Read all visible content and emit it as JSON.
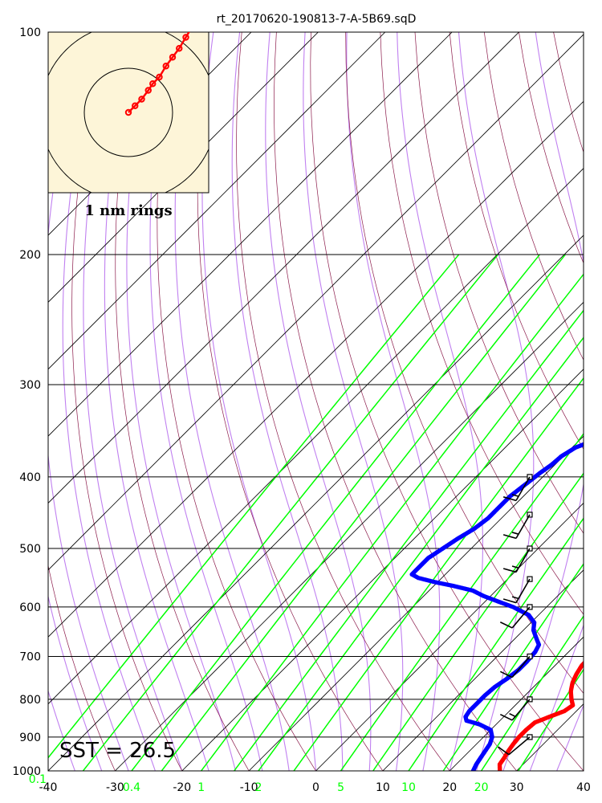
{
  "chart_data": {
    "type": "scatter",
    "title": "rt_20170620-190813-7-A-5B69.sqD",
    "y_axis": {
      "scale": "log",
      "range": [
        1000,
        100
      ],
      "tick_labels": [
        "100",
        "200",
        "300",
        "400",
        "500",
        "600",
        "700",
        "800",
        "900",
        "1000"
      ]
    },
    "x_axis": {
      "range": [
        -40,
        40
      ],
      "tick_labels": [
        "-40",
        "-30",
        "-20",
        "-10",
        "0",
        "10",
        "20",
        "30",
        "40"
      ]
    },
    "mixing_ratio_labels": [
      "0.1",
      "0.4",
      "1",
      "2",
      "5",
      "10",
      "20"
    ],
    "annotation": "SST = 26.5",
    "inset_label": "1 nm rings",
    "colors": {
      "temperature": "#ff0000",
      "dewpoint": "#0000ff",
      "mixing_ratio": "#00ff00",
      "dry_adiabat": "#8b1a4a",
      "moist_adiabat": "#c080f0",
      "isotherm": "#000000",
      "inset_background": "#fdf5d8"
    },
    "series": [
      {
        "points": [
          [
            1000,
            27.5
          ],
          [
            980,
            26.5
          ],
          [
            960,
            26.2
          ],
          [
            940,
            25.8
          ],
          [
            920,
            25.5
          ],
          [
            900,
            25.3
          ],
          [
            880,
            25.3
          ],
          [
            860,
            25.5
          ],
          [
            845,
            26.8
          ],
          [
            830,
            28.2
          ],
          [
            815,
            28.6
          ],
          [
            800,
            27.5
          ],
          [
            780,
            26.2
          ],
          [
            760,
            25.2
          ],
          [
            740,
            24.5
          ],
          [
            720,
            24.0
          ],
          [
            700,
            24.0
          ],
          [
            680,
            24.0
          ],
          [
            665,
            24.2
          ],
          [
            650,
            25.0
          ],
          [
            630,
            25.2
          ],
          [
            610,
            25.0
          ],
          [
            590,
            24.0
          ],
          [
            575,
            22.5
          ],
          [
            560,
            21.5
          ],
          [
            545,
            21.0
          ],
          [
            530,
            20.8
          ],
          [
            515,
            20.6
          ],
          [
            500,
            20.2
          ],
          [
            480,
            19.5
          ],
          [
            460,
            18.8
          ],
          [
            440,
            17.8
          ],
          [
            420,
            17.5
          ],
          [
            405,
            17.2
          ],
          [
            395,
            17.5
          ],
          [
            385,
            18.0
          ],
          [
            370,
            18.3
          ],
          [
            355,
            18.2
          ]
        ]
      },
      {
        "points": [
          [
            1000,
            23.5
          ],
          [
            980,
            23.0
          ],
          [
            950,
            22.5
          ],
          [
            920,
            22.0
          ],
          [
            900,
            21.3
          ],
          [
            880,
            20.0
          ],
          [
            865,
            17.5
          ],
          [
            855,
            15.0
          ],
          [
            845,
            14.3
          ],
          [
            830,
            14.0
          ],
          [
            810,
            14.0
          ],
          [
            790,
            14.0
          ],
          [
            770,
            14.2
          ],
          [
            750,
            14.8
          ],
          [
            730,
            15.2
          ],
          [
            710,
            15.2
          ],
          [
            690,
            15.0
          ],
          [
            675,
            14.5
          ],
          [
            660,
            13.0
          ],
          [
            645,
            11.5
          ],
          [
            630,
            10.5
          ],
          [
            615,
            8.5
          ],
          [
            600,
            5.0
          ],
          [
            590,
            2.0
          ],
          [
            580,
            -1.0
          ],
          [
            570,
            -3.5
          ],
          [
            562,
            -7.0
          ],
          [
            555,
            -10.5
          ],
          [
            548,
            -13.5
          ],
          [
            542,
            -15.0
          ],
          [
            535,
            -15.0
          ],
          [
            525,
            -15.0
          ],
          [
            515,
            -15.0
          ],
          [
            505,
            -14.5
          ],
          [
            495,
            -14.0
          ],
          [
            485,
            -13.5
          ],
          [
            470,
            -12.5
          ],
          [
            455,
            -12.0
          ],
          [
            440,
            -12.0
          ],
          [
            425,
            -12.0
          ],
          [
            410,
            -11.5
          ],
          [
            395,
            -11.0
          ],
          [
            385,
            -10.5
          ],
          [
            375,
            -10.3
          ],
          [
            365,
            -9.5
          ],
          [
            358,
            -8.0
          ],
          [
            355,
            -6.0
          ]
        ]
      }
    ],
    "wind_barbs": [
      {
        "p": 400,
        "dir": 210,
        "kt": 15
      },
      {
        "p": 450,
        "dir": 210,
        "kt": 15
      },
      {
        "p": 500,
        "dir": 210,
        "kt": 15
      },
      {
        "p": 550,
        "dir": 210,
        "kt": 15
      },
      {
        "p": 600,
        "dir": 220,
        "kt": 10
      },
      {
        "p": 700,
        "dir": 220,
        "kt": 10
      },
      {
        "p": 800,
        "dir": 220,
        "kt": 15
      },
      {
        "p": 900,
        "dir": 230,
        "kt": 10
      }
    ],
    "hodograph": [
      [
        0,
        0
      ],
      [
        0.15,
        0.15
      ],
      [
        0.3,
        0.3
      ],
      [
        0.45,
        0.5
      ],
      [
        0.55,
        0.65
      ],
      [
        0.7,
        0.8
      ],
      [
        0.85,
        1.05
      ],
      [
        1.0,
        1.25
      ],
      [
        1.15,
        1.45
      ],
      [
        1.3,
        1.7
      ],
      [
        1.45,
        1.95
      ]
    ]
  }
}
